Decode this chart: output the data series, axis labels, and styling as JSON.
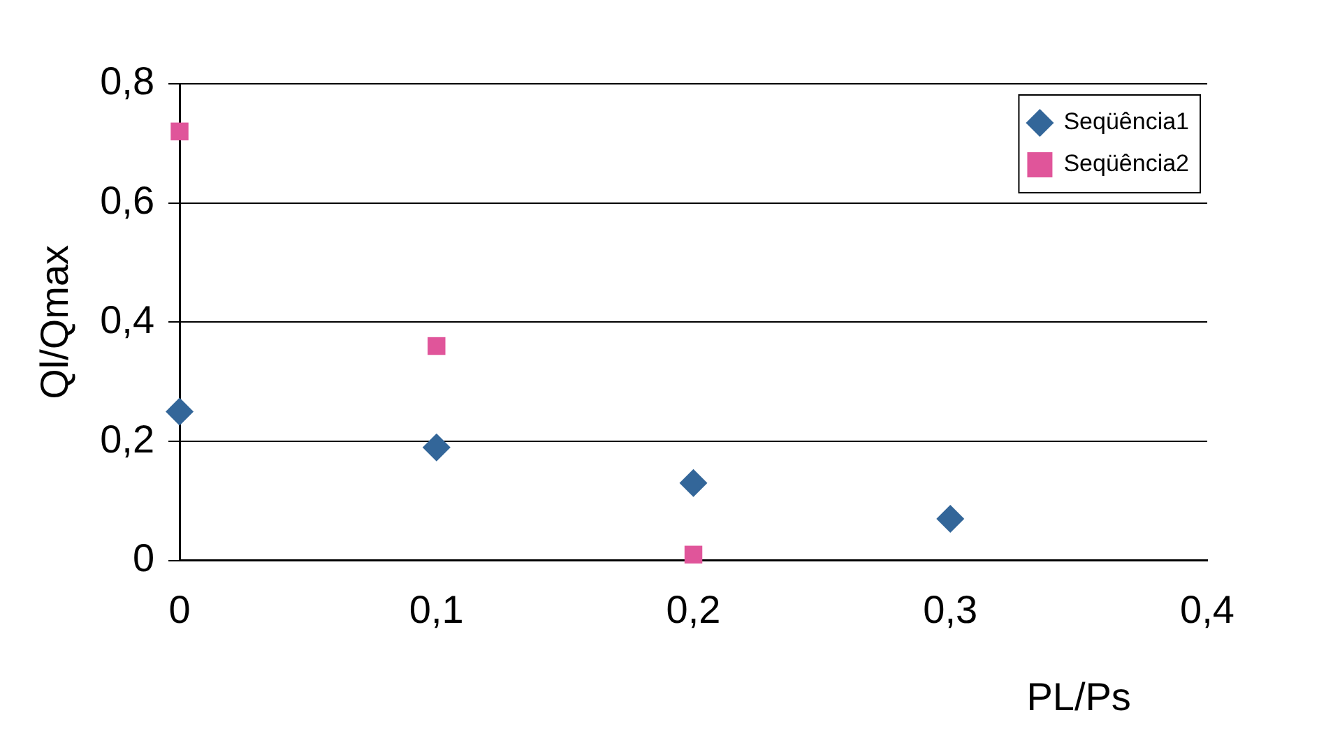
{
  "chart_data": {
    "type": "scatter",
    "ylabel": "Ql/Qmax",
    "xlabel": "PL/Ps",
    "xlim": [
      0,
      0.4
    ],
    "xticks": [
      {
        "value": 0,
        "label": "0"
      },
      {
        "value": 0.1,
        "label": "0,1"
      },
      {
        "value": 0.2,
        "label": "0,2"
      },
      {
        "value": 0.3,
        "label": "0,3"
      },
      {
        "value": 0.4,
        "label": "0,4"
      }
    ],
    "ylim": [
      0,
      0.8
    ],
    "yticks": [
      {
        "value": 0,
        "label": "0"
      },
      {
        "value": 0.2,
        "label": "0,2"
      },
      {
        "value": 0.4,
        "label": "0,4"
      },
      {
        "value": 0.6,
        "label": "0,6"
      },
      {
        "value": 0.8,
        "label": "0,8"
      }
    ],
    "grid": "y",
    "legend": "top right",
    "series": [
      {
        "name": "Seqüência1",
        "color": "#336699",
        "marker": "diamond",
        "x": [
          0,
          0.1,
          0.2,
          0.3
        ],
        "values": [
          0.25,
          0.19,
          0.13,
          0.07
        ]
      },
      {
        "name": "Seqüência2",
        "color": "#e0559a",
        "marker": "square",
        "x": [
          0,
          0.1,
          0.2
        ],
        "values": [
          0.72,
          0.36,
          0.01
        ]
      }
    ]
  }
}
